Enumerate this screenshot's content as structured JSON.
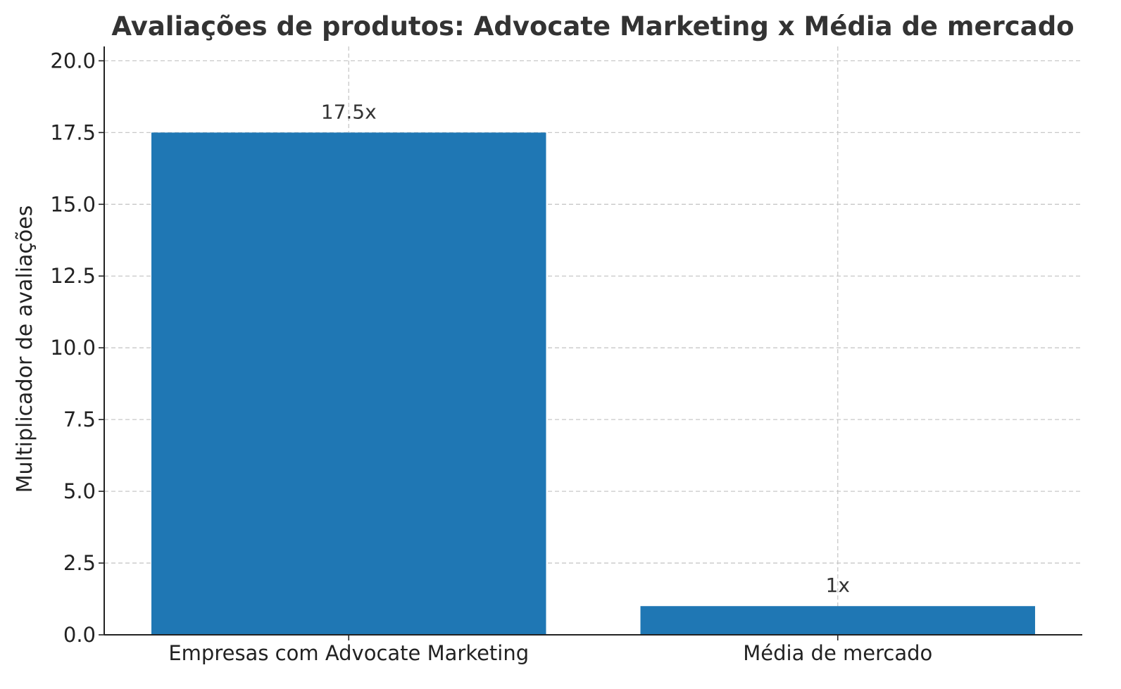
{
  "chart_data": {
    "type": "bar",
    "title": "Avaliações de produtos: Advocate Marketing x Média de mercado",
    "xlabel": "",
    "ylabel": "Multiplicador de avaliações",
    "categories": [
      "Empresas com Advocate Marketing",
      "Média de mercado"
    ],
    "values": [
      17.5,
      1
    ],
    "data_labels": [
      "17.5x",
      "1x"
    ],
    "ylim": [
      0,
      20.5
    ],
    "yticks": [
      0,
      2.5,
      5,
      7.5,
      10,
      12.5,
      15,
      17.5,
      20
    ],
    "ytick_labels": [
      "0.0",
      "2.5",
      "5.0",
      "7.5",
      "10.0",
      "12.5",
      "15.0",
      "17.5",
      "20.0"
    ],
    "bar_color": "#1f77b4",
    "grid": true
  }
}
